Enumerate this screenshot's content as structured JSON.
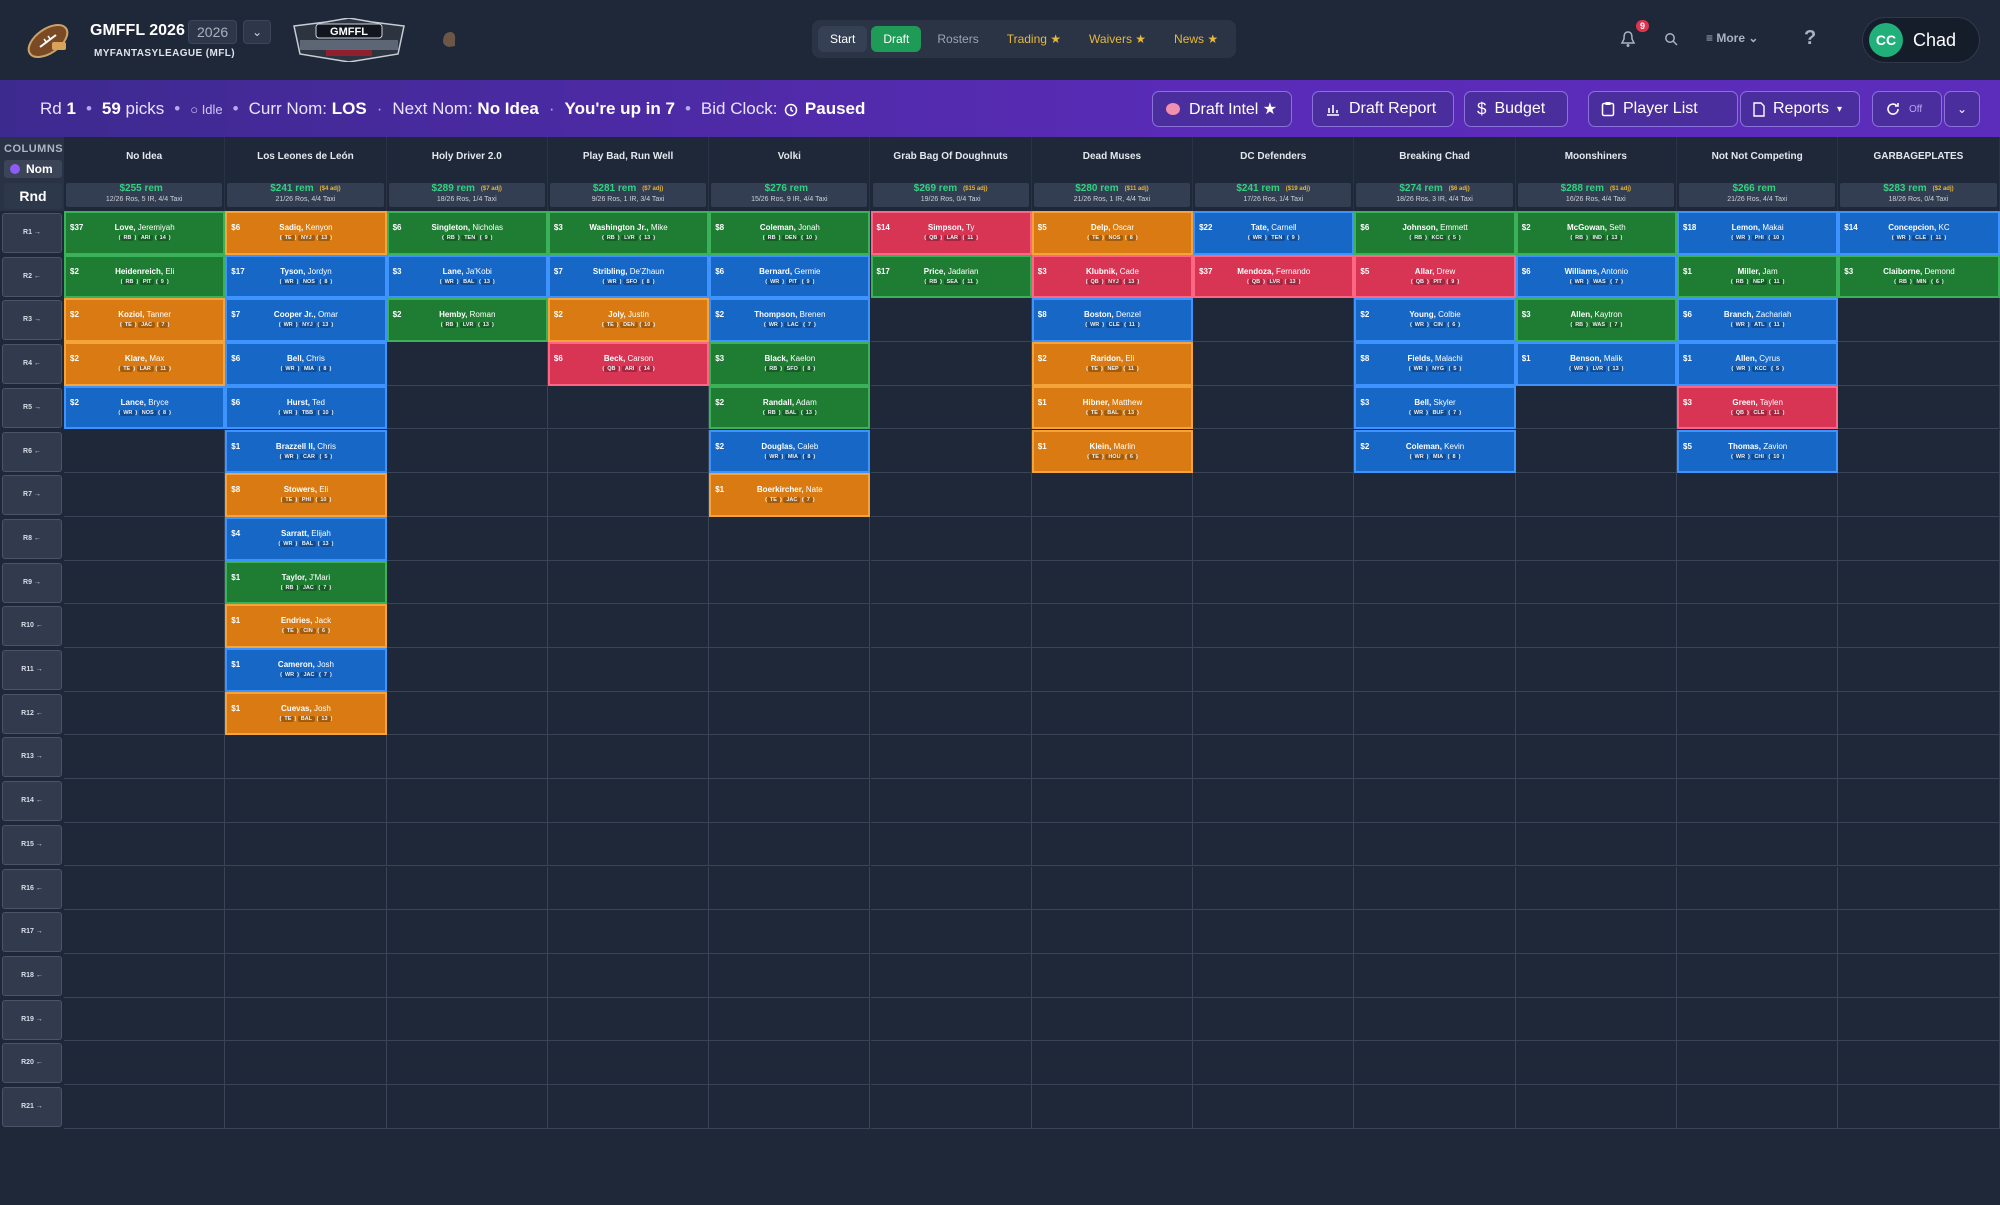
{
  "header": {
    "app_name": "GMFFL 2026",
    "subtitle": "MYFANTASYLEAGUE (MFL)",
    "year": "2026",
    "tabs": [
      {
        "label": "Start",
        "style": "start"
      },
      {
        "label": "Draft",
        "style": "active"
      },
      {
        "label": "Rosters",
        "style": "normal"
      },
      {
        "label": "Trading ★",
        "style": "gold"
      },
      {
        "label": "Waivers ★",
        "style": "gold"
      },
      {
        "label": "News ★",
        "style": "gold"
      }
    ],
    "notification_count": "9",
    "more_label": "≡  More  ⌄",
    "help_label": "?",
    "user_initials": "CC",
    "user_name": "Chad"
  },
  "status": {
    "round_label": "Rd",
    "round": "1",
    "picks_count": "59",
    "picks_label": "picks",
    "state": "○ Idle",
    "curr_nom_label": "Curr Nom:",
    "curr_nom": "LOS",
    "next_nom_label": "Next Nom:",
    "next_nom": "No Idea",
    "upnext": "You're up in 7",
    "bid_clock_label": "Bid Clock:",
    "bid_clock": "Paused",
    "buttons": {
      "draft_intel": "Draft Intel ★",
      "draft_report": "Draft Report",
      "budget": "Budget",
      "player_list": "Player List",
      "reports": "Reports",
      "refresh": "Off"
    }
  },
  "board": {
    "columns_label": "COLUMNS",
    "nom_label": "Nom",
    "rnd_label": "Rnd",
    "teams": [
      {
        "name": "No Idea",
        "rem": "$255 rem",
        "adj": "",
        "info": "12/26 Ros, 5 IR, 4/4 Taxi"
      },
      {
        "name": "Los Leones de León",
        "rem": "$241 rem",
        "adj": "($4 adj)",
        "info": "21/26 Ros, 4/4 Taxi"
      },
      {
        "name": "Holy Driver 2.0",
        "rem": "$289 rem",
        "adj": "($7 adj)",
        "info": "18/26 Ros, 1/4 Taxi"
      },
      {
        "name": "Play Bad, Run Well",
        "rem": "$281 rem",
        "adj": "($7 adj)",
        "info": "9/26 Ros, 1 IR, 3/4 Taxi"
      },
      {
        "name": "Volki",
        "rem": "$276 rem",
        "adj": "",
        "info": "15/26 Ros, 9 IR, 4/4 Taxi"
      },
      {
        "name": "Grab Bag Of Doughnuts",
        "rem": "$269 rem",
        "adj": "($15 adj)",
        "info": "19/26 Ros, 0/4 Taxi"
      },
      {
        "name": "Dead Muses",
        "rem": "$280 rem",
        "adj": "($11 adj)",
        "info": "21/26 Ros, 1 IR, 4/4 Taxi"
      },
      {
        "name": "DC Defenders",
        "rem": "$241 rem",
        "adj": "($19 adj)",
        "info": "17/26 Ros, 1/4 Taxi"
      },
      {
        "name": "Breaking Chad",
        "rem": "$274 rem",
        "adj": "($6 adj)",
        "info": "18/26 Ros, 3 IR, 4/4 Taxi"
      },
      {
        "name": "Moonshiners",
        "rem": "$288 rem",
        "adj": "($1 adj)",
        "info": "16/26 Ros, 4/4 Taxi"
      },
      {
        "name": "Not Not Competing",
        "rem": "$266 rem",
        "adj": "",
        "info": "21/26 Ros, 4/4 Taxi"
      },
      {
        "name": "GARBAGEPLATES",
        "rem": "$283 rem",
        "adj": "($2 adj)",
        "info": "18/26 Ros, 0/4 Taxi"
      }
    ],
    "rounds": [
      "R1 →",
      "R2 ←",
      "R3 →",
      "R4 ←",
      "R5 →",
      "R6 ←",
      "R7 →",
      "R8 ←",
      "R9 →",
      "R10 ←",
      "R11 →",
      "R12 ←",
      "R13 →",
      "R14 ←",
      "R15 →",
      "R16 ←",
      "R17 →",
      "R18 ←",
      "R19 →",
      "R20 ←",
      "R21 →"
    ],
    "picks": [
      {
        "col": 0,
        "row": 0,
        "price": "$37",
        "last": "Love,",
        "first": "Jeremiyah",
        "pos": "RB",
        "team": "ARI",
        "bye": "14"
      },
      {
        "col": 0,
        "row": 1,
        "price": "$2",
        "last": "Heidenreich,",
        "first": "Eli",
        "pos": "RB",
        "team": "PIT",
        "bye": "9"
      },
      {
        "col": 0,
        "row": 2,
        "price": "$2",
        "last": "Koziol,",
        "first": "Tanner",
        "pos": "TE",
        "team": "JAC",
        "bye": "7"
      },
      {
        "col": 0,
        "row": 3,
        "price": "$2",
        "last": "Klare,",
        "first": "Max",
        "pos": "TE",
        "team": "LAR",
        "bye": "11"
      },
      {
        "col": 0,
        "row": 4,
        "price": "$2",
        "last": "Lance,",
        "first": "Bryce",
        "pos": "WR",
        "team": "NOS",
        "bye": "8"
      },
      {
        "col": 1,
        "row": 0,
        "price": "$6",
        "last": "Sadiq,",
        "first": "Kenyon",
        "pos": "TE",
        "team": "NYJ",
        "bye": "13"
      },
      {
        "col": 1,
        "row": 1,
        "price": "$17",
        "last": "Tyson,",
        "first": "Jordyn",
        "pos": "WR",
        "team": "NOS",
        "bye": "8"
      },
      {
        "col": 1,
        "row": 2,
        "price": "$7",
        "last": "Cooper Jr.,",
        "first": "Omar",
        "pos": "WR",
        "team": "NYJ",
        "bye": "13"
      },
      {
        "col": 1,
        "row": 3,
        "price": "$6",
        "last": "Bell,",
        "first": "Chris",
        "pos": "WR",
        "team": "MIA",
        "bye": "8"
      },
      {
        "col": 1,
        "row": 4,
        "price": "$6",
        "last": "Hurst,",
        "first": "Ted",
        "pos": "WR",
        "team": "TBB",
        "bye": "10"
      },
      {
        "col": 1,
        "row": 5,
        "price": "$1",
        "last": "Brazzell II,",
        "first": "Chris",
        "pos": "WR",
        "team": "CAR",
        "bye": "5"
      },
      {
        "col": 1,
        "row": 6,
        "price": "$8",
        "last": "Stowers,",
        "first": "Eli",
        "pos": "TE",
        "team": "PHI",
        "bye": "10"
      },
      {
        "col": 1,
        "row": 7,
        "price": "$4",
        "last": "Sarratt,",
        "first": "Elijah",
        "pos": "WR",
        "team": "BAL",
        "bye": "13"
      },
      {
        "col": 1,
        "row": 8,
        "price": "$1",
        "last": "Taylor,",
        "first": "J'Mari",
        "pos": "RB",
        "team": "JAC",
        "bye": "7"
      },
      {
        "col": 1,
        "row": 9,
        "price": "$1",
        "last": "Endries,",
        "first": "Jack",
        "pos": "TE",
        "team": "CIN",
        "bye": "6"
      },
      {
        "col": 1,
        "row": 10,
        "price": "$1",
        "last": "Cameron,",
        "first": "Josh",
        "pos": "WR",
        "team": "JAC",
        "bye": "7"
      },
      {
        "col": 1,
        "row": 11,
        "price": "$1",
        "last": "Cuevas,",
        "first": "Josh",
        "pos": "TE",
        "team": "BAL",
        "bye": "13"
      },
      {
        "col": 2,
        "row": 0,
        "price": "$6",
        "last": "Singleton,",
        "first": "Nicholas",
        "pos": "RB",
        "team": "TEN",
        "bye": "9"
      },
      {
        "col": 2,
        "row": 1,
        "price": "$3",
        "last": "Lane,",
        "first": "Ja'Kobi",
        "pos": "WR",
        "team": "BAL",
        "bye": "13"
      },
      {
        "col": 2,
        "row": 2,
        "price": "$2",
        "last": "Hemby,",
        "first": "Roman",
        "pos": "RB",
        "team": "LVR",
        "bye": "13"
      },
      {
        "col": 3,
        "row": 0,
        "price": "$3",
        "last": "Washington Jr.,",
        "first": "Mike",
        "pos": "RB",
        "team": "LVR",
        "bye": "13"
      },
      {
        "col": 3,
        "row": 1,
        "price": "$7",
        "last": "Stribling,",
        "first": "De'Zhaun",
        "pos": "WR",
        "team": "SFO",
        "bye": "8"
      },
      {
        "col": 3,
        "row": 2,
        "price": "$2",
        "last": "Joly,",
        "first": "Justin",
        "pos": "TE",
        "team": "DEN",
        "bye": "10"
      },
      {
        "col": 3,
        "row": 3,
        "price": "$6",
        "last": "Beck,",
        "first": "Carson",
        "pos": "QB",
        "team": "ARI",
        "bye": "14"
      },
      {
        "col": 4,
        "row": 0,
        "price": "$8",
        "last": "Coleman,",
        "first": "Jonah",
        "pos": "RB",
        "team": "DEN",
        "bye": "10"
      },
      {
        "col": 4,
        "row": 1,
        "price": "$6",
        "last": "Bernard,",
        "first": "Germie",
        "pos": "WR",
        "team": "PIT",
        "bye": "9"
      },
      {
        "col": 4,
        "row": 2,
        "price": "$2",
        "last": "Thompson,",
        "first": "Brenen",
        "pos": "WR",
        "team": "LAC",
        "bye": "7"
      },
      {
        "col": 4,
        "row": 3,
        "price": "$3",
        "last": "Black,",
        "first": "Kaelon",
        "pos": "RB",
        "team": "SFO",
        "bye": "8"
      },
      {
        "col": 4,
        "row": 4,
        "price": "$2",
        "last": "Randall,",
        "first": "Adam",
        "pos": "RB",
        "team": "BAL",
        "bye": "13"
      },
      {
        "col": 4,
        "row": 5,
        "price": "$2",
        "last": "Douglas,",
        "first": "Caleb",
        "pos": "WR",
        "team": "MIA",
        "bye": "8"
      },
      {
        "col": 4,
        "row": 6,
        "price": "$1",
        "last": "Boerkircher,",
        "first": "Nate",
        "pos": "TE",
        "team": "JAC",
        "bye": "7"
      },
      {
        "col": 5,
        "row": 0,
        "price": "$14",
        "last": "Simpson,",
        "first": "Ty",
        "pos": "QB",
        "team": "LAR",
        "bye": "11"
      },
      {
        "col": 5,
        "row": 1,
        "price": "$17",
        "last": "Price,",
        "first": "Jadarian",
        "pos": "RB",
        "team": "SEA",
        "bye": "11"
      },
      {
        "col": 6,
        "row": 0,
        "price": "$5",
        "last": "Delp,",
        "first": "Oscar",
        "pos": "TE",
        "team": "NOS",
        "bye": "8"
      },
      {
        "col": 6,
        "row": 1,
        "price": "$3",
        "last": "Klubnik,",
        "first": "Cade",
        "pos": "QB",
        "team": "NYJ",
        "bye": "13"
      },
      {
        "col": 6,
        "row": 2,
        "price": "$8",
        "last": "Boston,",
        "first": "Denzel",
        "pos": "WR",
        "team": "CLE",
        "bye": "11"
      },
      {
        "col": 6,
        "row": 3,
        "price": "$2",
        "last": "Raridon,",
        "first": "Eli",
        "pos": "TE",
        "team": "NEP",
        "bye": "11"
      },
      {
        "col": 6,
        "row": 4,
        "price": "$1",
        "last": "Hibner,",
        "first": "Matthew",
        "pos": "TE",
        "team": "BAL",
        "bye": "13"
      },
      {
        "col": 6,
        "row": 5,
        "price": "$1",
        "last": "Klein,",
        "first": "Marlin",
        "pos": "TE",
        "team": "HOU",
        "bye": "6"
      },
      {
        "col": 7,
        "row": 0,
        "price": "$22",
        "last": "Tate,",
        "first": "Carnell",
        "pos": "WR",
        "team": "TEN",
        "bye": "9"
      },
      {
        "col": 7,
        "row": 1,
        "price": "$37",
        "last": "Mendoza,",
        "first": "Fernando",
        "pos": "QB",
        "team": "LVR",
        "bye": "13"
      },
      {
        "col": 8,
        "row": 0,
        "price": "$6",
        "last": "Johnson,",
        "first": "Emmett",
        "pos": "RB",
        "team": "KCC",
        "bye": "5"
      },
      {
        "col": 8,
        "row": 1,
        "price": "$5",
        "last": "Allar,",
        "first": "Drew",
        "pos": "QB",
        "team": "PIT",
        "bye": "9"
      },
      {
        "col": 8,
        "row": 2,
        "price": "$2",
        "last": "Young,",
        "first": "Colbie",
        "pos": "WR",
        "team": "CIN",
        "bye": "6"
      },
      {
        "col": 8,
        "row": 3,
        "price": "$8",
        "last": "Fields,",
        "first": "Malachi",
        "pos": "WR",
        "team": "NYG",
        "bye": "5"
      },
      {
        "col": 8,
        "row": 4,
        "price": "$3",
        "last": "Bell,",
        "first": "Skyler",
        "pos": "WR",
        "team": "BUF",
        "bye": "7"
      },
      {
        "col": 8,
        "row": 5,
        "price": "$2",
        "last": "Coleman,",
        "first": "Kevin",
        "pos": "WR",
        "team": "MIA",
        "bye": "8"
      },
      {
        "col": 9,
        "row": 0,
        "price": "$2",
        "last": "McGowan,",
        "first": "Seth",
        "pos": "RB",
        "team": "IND",
        "bye": "13"
      },
      {
        "col": 9,
        "row": 1,
        "price": "$6",
        "last": "Williams,",
        "first": "Antonio",
        "pos": "WR",
        "team": "WAS",
        "bye": "7"
      },
      {
        "col": 9,
        "row": 2,
        "price": "$3",
        "last": "Allen,",
        "first": "Kaytron",
        "pos": "RB",
        "team": "WAS",
        "bye": "7"
      },
      {
        "col": 9,
        "row": 3,
        "price": "$1",
        "last": "Benson,",
        "first": "Malik",
        "pos": "WR",
        "team": "LVR",
        "bye": "13"
      },
      {
        "col": 10,
        "row": 0,
        "price": "$18",
        "last": "Lemon,",
        "first": "Makai",
        "pos": "WR",
        "team": "PHI",
        "bye": "10"
      },
      {
        "col": 10,
        "row": 1,
        "price": "$1",
        "last": "Miller,",
        "first": "Jam",
        "pos": "RB",
        "team": "NEP",
        "bye": "11"
      },
      {
        "col": 10,
        "row": 2,
        "price": "$6",
        "last": "Branch,",
        "first": "Zachariah",
        "pos": "WR",
        "team": "ATL",
        "bye": "11"
      },
      {
        "col": 10,
        "row": 3,
        "price": "$1",
        "last": "Allen,",
        "first": "Cyrus",
        "pos": "WR",
        "team": "KCC",
        "bye": "5"
      },
      {
        "col": 10,
        "row": 4,
        "price": "$3",
        "last": "Green,",
        "first": "Taylen",
        "pos": "QB",
        "team": "CLE",
        "bye": "11"
      },
      {
        "col": 10,
        "row": 5,
        "price": "$5",
        "last": "Thomas,",
        "first": "Zavion",
        "pos": "WR",
        "team": "CHI",
        "bye": "10"
      },
      {
        "col": 11,
        "row": 0,
        "price": "$14",
        "last": "Concepcion,",
        "first": "KC",
        "pos": "WR",
        "team": "CLE",
        "bye": "11"
      },
      {
        "col": 11,
        "row": 1,
        "price": "$3",
        "last": "Claiborne,",
        "first": "Demond",
        "pos": "RB",
        "team": "MIN",
        "bye": "6"
      }
    ]
  }
}
